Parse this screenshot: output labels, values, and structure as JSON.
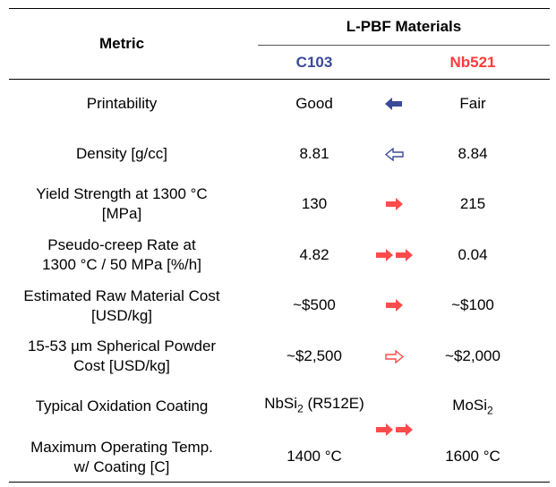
{
  "header": {
    "metric_label": "Metric",
    "group_label": "L-PBF Materials",
    "col_c103": "C103",
    "col_nb521": "Nb521"
  },
  "colors": {
    "c103": "#3a4a9a",
    "nb521": "#ff3b3b",
    "arrow_blue": "#3a4a9a",
    "arrow_red": "#ff4b4b"
  },
  "rows": [
    {
      "metric": "Printability",
      "c103": "Good",
      "nb521": "Fair",
      "arrow": "blue-left-solid"
    },
    {
      "metric": "Density [g/cc]",
      "c103": "8.81",
      "nb521": "8.84",
      "arrow": "blue-left-outline"
    },
    {
      "metric": "Yield Strength at 1300 °C\n[MPa]",
      "c103": "130",
      "nb521": "215",
      "arrow": "red-right-solid"
    },
    {
      "metric": "Pseudo-creep Rate at\n1300 °C / 50 MPa [%/h]",
      "c103": "4.82",
      "nb521": "0.04",
      "arrow": "red-right-double"
    },
    {
      "metric": "Estimated Raw Material Cost\n[USD/kg]",
      "c103": "~$500",
      "nb521": "~$100",
      "arrow": "red-right-solid"
    },
    {
      "metric": "15-53 µm Spherical Powder\nCost [USD/kg]",
      "c103": "~$2,500",
      "nb521": "~$2,000",
      "arrow": "red-right-outline"
    },
    {
      "metric": "Typical Oxidation Coating",
      "c103_base": "NbSi",
      "c103_sub": "2",
      "c103_suffix": " (R512E)",
      "nb521_base": "MoSi",
      "nb521_sub": "2"
    },
    {
      "metric": "Maximum Operating Temp.\nw/ Coating [C]",
      "c103": "1400 °C",
      "nb521": "1600 °C"
    }
  ],
  "shared_arrow_rows_7_8": "red-right-double"
}
